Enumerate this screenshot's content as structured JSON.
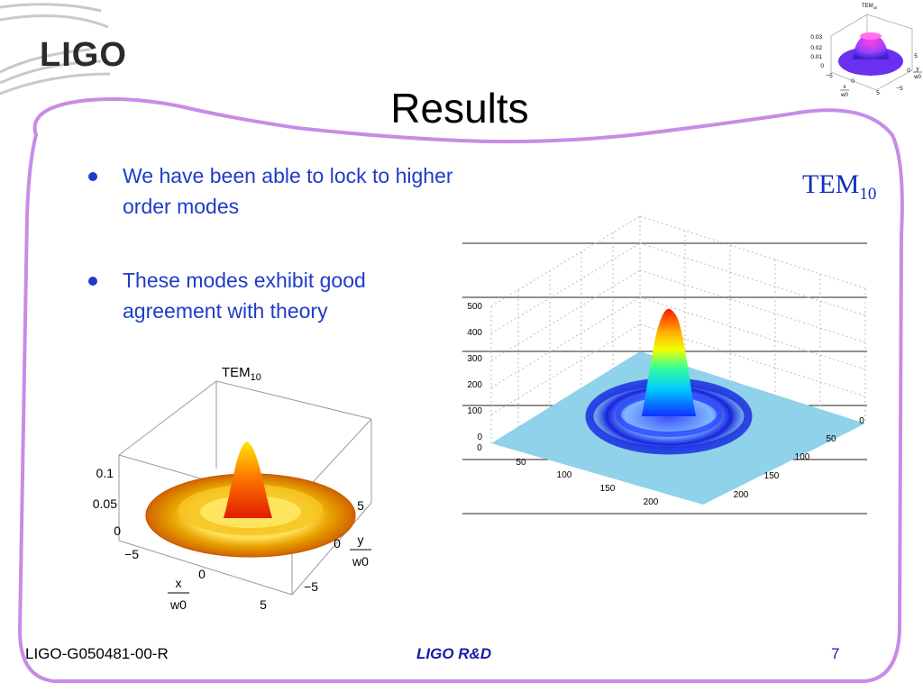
{
  "header": {
    "logo_text": "LIGO",
    "title": "Results"
  },
  "bullets": [
    "We have been able to lock to higher order modes",
    "These modes exhibit good agreement with theory"
  ],
  "measured_label": {
    "base": "TEM",
    "sub": "10"
  },
  "theory_plot": {
    "title": "TEM",
    "title_sub": "10",
    "z_ticks": [
      "0.1",
      "0.05",
      "0"
    ],
    "x_ticks": [
      "−5",
      "0",
      "5"
    ],
    "y_ticks": [
      "5",
      "0",
      "−5"
    ],
    "x_label_num": "x",
    "x_label_den": "w0",
    "y_label_num": "y",
    "y_label_den": "w0"
  },
  "measured_plot": {
    "z_ticks": [
      "500",
      "400",
      "300",
      "200",
      "100",
      "0"
    ],
    "x_ticks": [
      "0",
      "50",
      "100",
      "150",
      "200"
    ],
    "y_ticks": [
      "0",
      "50",
      "100",
      "150",
      "200"
    ]
  },
  "thumb_plot": {
    "title": "TEM",
    "title_sub": "00",
    "z_ticks": [
      "0.03",
      "0.02",
      "0.01",
      "0"
    ],
    "x_ticks": [
      "−5",
      "0",
      "5"
    ],
    "y_ticks": [
      "5",
      "0",
      "−5"
    ],
    "x_label_num": "x",
    "x_label_den": "w0",
    "y_label_num": "y",
    "y_label_den": "w0"
  },
  "footer": {
    "doc_id": "LIGO-G050481-00-R",
    "center": "LIGO R&D",
    "page": "7"
  },
  "colors": {
    "frame": "#c98be6",
    "bullet_text": "#1f3cc8",
    "footer_accent": "#1a1aa8"
  }
}
